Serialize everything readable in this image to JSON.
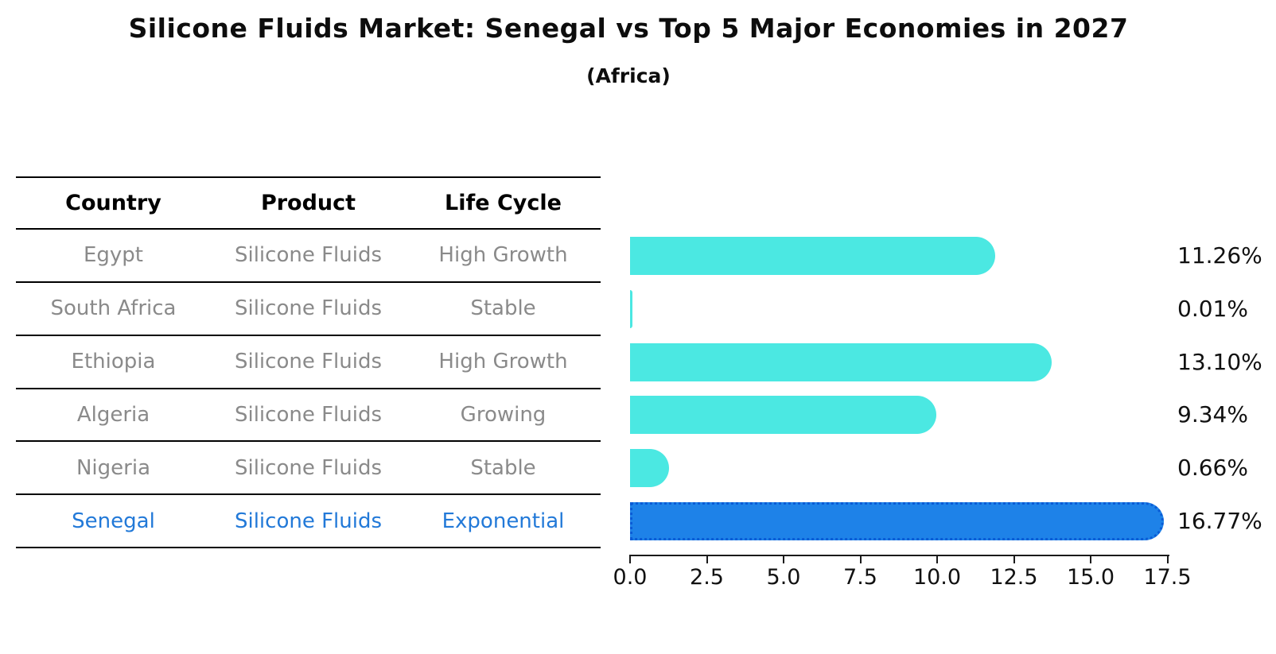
{
  "title": "Silicone Fluids Market: Senegal vs Top 5 Major Economies in 2027",
  "subtitle": "(Africa)",
  "table": {
    "headers": [
      "Country",
      "Product",
      "Life Cycle"
    ],
    "rows": [
      {
        "country": "Egypt",
        "product": "Silicone Fluids",
        "life_cycle": "High Growth"
      },
      {
        "country": "South Africa",
        "product": "Silicone Fluids",
        "life_cycle": "Stable"
      },
      {
        "country": "Ethiopia",
        "product": "Silicone Fluids",
        "life_cycle": "High Growth"
      },
      {
        "country": "Algeria",
        "product": "Silicone Fluids",
        "life_cycle": "Growing"
      },
      {
        "country": "Nigeria",
        "product": "Silicone Fluids",
        "life_cycle": "Stable"
      },
      {
        "country": "Senegal",
        "product": "Silicone Fluids",
        "life_cycle": "Exponential"
      }
    ]
  },
  "chart_data": {
    "type": "bar",
    "orientation": "horizontal",
    "categories": [
      "Egypt",
      "South Africa",
      "Ethiopia",
      "Algeria",
      "Nigeria",
      "Senegal"
    ],
    "values": [
      11.26,
      0.01,
      13.1,
      9.34,
      0.66,
      16.77
    ],
    "value_labels": [
      "11.26%",
      "0.01%",
      "13.10%",
      "9.34%",
      "0.66%",
      "16.77%"
    ],
    "x_ticks": [
      "0.0",
      "2.5",
      "5.0",
      "7.5",
      "10.0",
      "12.5",
      "15.0",
      "17.5"
    ],
    "xlim": [
      0,
      17.5
    ],
    "grid": "off",
    "legend": "none",
    "bar_color": "#4be8e2",
    "highlight_color": "#1e82e8",
    "highlight_border_color": "#0a5cd6",
    "highlight_index": 5,
    "highlight_text_color": "#2279d8"
  }
}
